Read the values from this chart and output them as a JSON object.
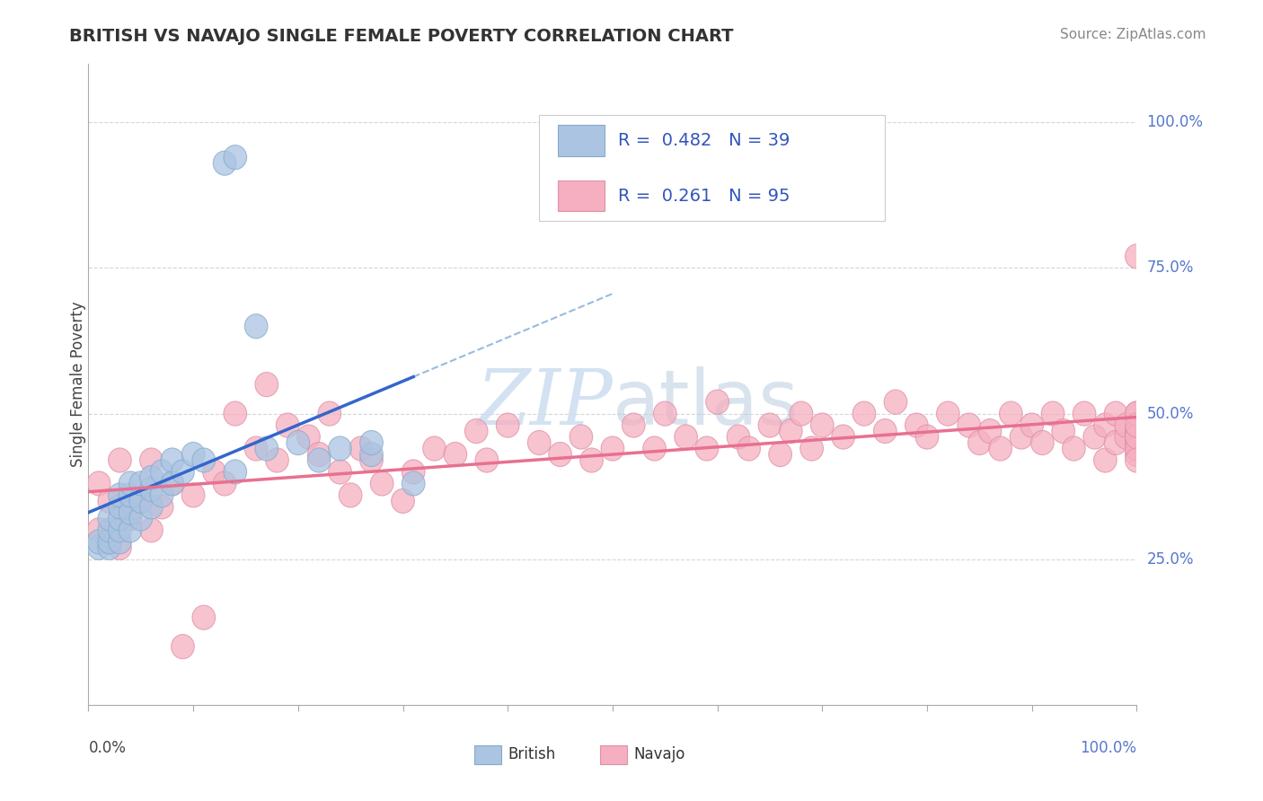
{
  "title": "BRITISH VS NAVAJO SINGLE FEMALE POVERTY CORRELATION CHART",
  "source": "Source: ZipAtlas.com",
  "ylabel": "Single Female Poverty",
  "ylabel_right_ticks": [
    "25.0%",
    "50.0%",
    "75.0%",
    "100.0%"
  ],
  "ylabel_right_vals": [
    0.25,
    0.5,
    0.75,
    1.0
  ],
  "british_R": 0.482,
  "british_N": 39,
  "navajo_R": 0.261,
  "navajo_N": 95,
  "british_color": "#aac4e2",
  "navajo_color": "#f5afc0",
  "british_line_color": "#3366cc",
  "navajo_line_color": "#e87090",
  "british_dashed_color": "#99bbdd",
  "watermark_color": "#ccddf0",
  "background_color": "#ffffff",
  "grid_color": "#cccccc",
  "british_x": [
    0.01,
    0.01,
    0.02,
    0.02,
    0.02,
    0.02,
    0.03,
    0.03,
    0.03,
    0.03,
    0.03,
    0.04,
    0.04,
    0.04,
    0.04,
    0.05,
    0.05,
    0.05,
    0.06,
    0.06,
    0.06,
    0.07,
    0.07,
    0.08,
    0.08,
    0.09,
    0.1,
    0.11,
    0.13,
    0.14,
    0.14,
    0.16,
    0.17,
    0.2,
    0.22,
    0.24,
    0.27,
    0.27,
    0.31
  ],
  "british_y": [
    0.27,
    0.28,
    0.27,
    0.28,
    0.3,
    0.32,
    0.28,
    0.3,
    0.32,
    0.34,
    0.36,
    0.3,
    0.33,
    0.36,
    0.38,
    0.32,
    0.35,
    0.38,
    0.34,
    0.37,
    0.39,
    0.36,
    0.4,
    0.38,
    0.42,
    0.4,
    0.43,
    0.42,
    0.93,
    0.94,
    0.4,
    0.65,
    0.44,
    0.45,
    0.42,
    0.44,
    0.43,
    0.45,
    0.38
  ],
  "navajo_x": [
    0.01,
    0.01,
    0.02,
    0.02,
    0.03,
    0.03,
    0.04,
    0.05,
    0.06,
    0.06,
    0.07,
    0.08,
    0.09,
    0.1,
    0.11,
    0.12,
    0.13,
    0.14,
    0.16,
    0.17,
    0.18,
    0.19,
    0.21,
    0.22,
    0.23,
    0.24,
    0.25,
    0.26,
    0.27,
    0.28,
    0.3,
    0.31,
    0.33,
    0.35,
    0.37,
    0.38,
    0.4,
    0.43,
    0.45,
    0.47,
    0.48,
    0.5,
    0.52,
    0.54,
    0.55,
    0.57,
    0.59,
    0.6,
    0.62,
    0.63,
    0.65,
    0.66,
    0.67,
    0.68,
    0.69,
    0.7,
    0.72,
    0.74,
    0.76,
    0.77,
    0.79,
    0.8,
    0.82,
    0.84,
    0.85,
    0.86,
    0.87,
    0.88,
    0.89,
    0.9,
    0.91,
    0.92,
    0.93,
    0.94,
    0.95,
    0.96,
    0.97,
    0.97,
    0.98,
    0.98,
    0.99,
    0.99,
    1.0,
    1.0,
    1.0,
    1.0,
    1.0,
    1.0,
    1.0,
    1.0,
    1.0,
    1.0,
    1.0,
    1.0,
    1.0
  ],
  "navajo_y": [
    0.3,
    0.38,
    0.28,
    0.35,
    0.27,
    0.42,
    0.32,
    0.35,
    0.3,
    0.42,
    0.34,
    0.38,
    0.1,
    0.36,
    0.15,
    0.4,
    0.38,
    0.5,
    0.44,
    0.55,
    0.42,
    0.48,
    0.46,
    0.43,
    0.5,
    0.4,
    0.36,
    0.44,
    0.42,
    0.38,
    0.35,
    0.4,
    0.44,
    0.43,
    0.47,
    0.42,
    0.48,
    0.45,
    0.43,
    0.46,
    0.42,
    0.44,
    0.48,
    0.44,
    0.5,
    0.46,
    0.44,
    0.52,
    0.46,
    0.44,
    0.48,
    0.43,
    0.47,
    0.5,
    0.44,
    0.48,
    0.46,
    0.5,
    0.47,
    0.52,
    0.48,
    0.46,
    0.5,
    0.48,
    0.45,
    0.47,
    0.44,
    0.5,
    0.46,
    0.48,
    0.45,
    0.5,
    0.47,
    0.44,
    0.5,
    0.46,
    0.48,
    0.42,
    0.5,
    0.45,
    0.46,
    0.48,
    0.44,
    0.47,
    0.5,
    0.45,
    0.43,
    0.47,
    0.46,
    0.5,
    0.44,
    0.46,
    0.48,
    0.42,
    0.77
  ],
  "xlim": [
    0.0,
    1.0
  ],
  "ylim": [
    0.0,
    1.1
  ],
  "n_xticks": 10
}
